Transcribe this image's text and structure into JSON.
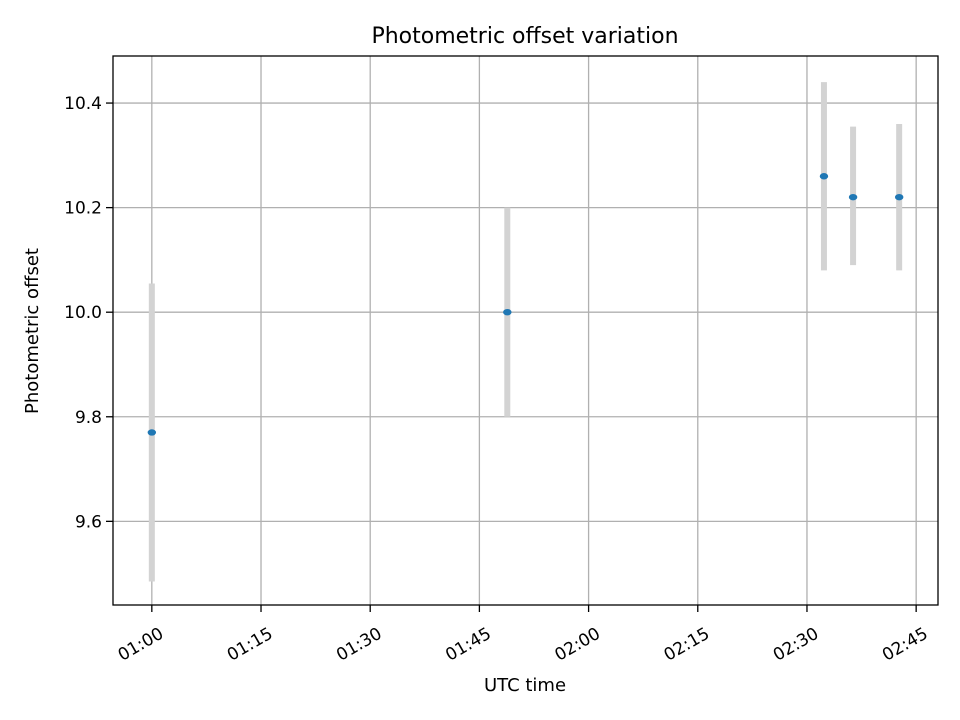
{
  "chart_data": {
    "type": "scatter",
    "title": "Photometric offset variation",
    "xlabel": "UTC time",
    "ylabel": "Photometric offset",
    "x_ticks": [
      "01:00",
      "01:15",
      "01:30",
      "01:45",
      "02:00",
      "02:15",
      "02:30",
      "02:45"
    ],
    "y_ticks": [
      "9.6",
      "9.8",
      "10.0",
      "10.2",
      "10.4"
    ],
    "xlim": [
      "00:54:40",
      "02:48:00"
    ],
    "ylim": [
      9.44,
      10.49
    ],
    "grid": true,
    "points": [
      {
        "x": "01:00:00",
        "y": 9.77,
        "yerr_low": 9.485,
        "yerr_high": 10.055
      },
      {
        "x": "01:48:50",
        "y": 10.0,
        "yerr_low": 9.8,
        "yerr_high": 10.2
      },
      {
        "x": "02:32:20",
        "y": 10.26,
        "yerr_low": 10.08,
        "yerr_high": 10.44
      },
      {
        "x": "02:36:20",
        "y": 10.22,
        "yerr_low": 10.09,
        "yerr_high": 10.355
      },
      {
        "x": "02:42:40",
        "y": 10.22,
        "yerr_low": 10.08,
        "yerr_high": 10.36
      }
    ],
    "colors": {
      "point": "#1f77b4",
      "errorbar": "#d3d3d3",
      "grid": "#b0b0b0"
    }
  }
}
